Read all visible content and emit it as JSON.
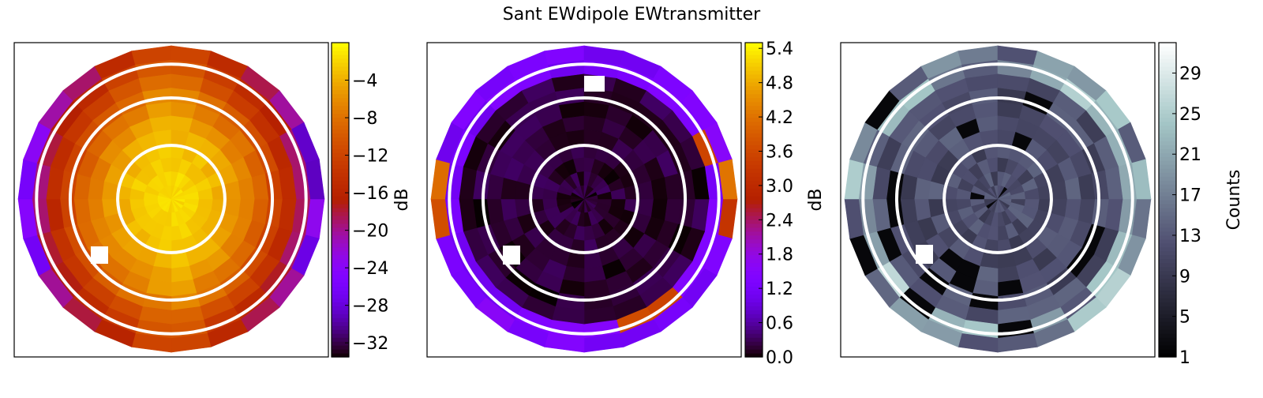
{
  "title": "Sant EWdipole EWtransmitter",
  "colors": {
    "ring": "#ffffff",
    "frame": "#000000",
    "background": "#ffffff"
  },
  "chart_data": [
    {
      "type": "heatmap",
      "projection": "polar sky map (zenith at center)",
      "colormap": "gnuplot",
      "colorbar": {
        "label": "dB",
        "range": [
          -33.5,
          0
        ],
        "ticks": [
          -32,
          -28,
          -24,
          -20,
          -16,
          -12,
          -8,
          -4
        ]
      },
      "description_values": {
        "center_value": -1,
        "edge_value": -20,
        "blank_cells": 1
      },
      "grid": false
    },
    {
      "type": "heatmap",
      "projection": "polar sky map (zenith at center)",
      "colormap": "gnuplot",
      "colorbar": {
        "label": "dB",
        "range": [
          0.0,
          5.5
        ],
        "ticks": [
          "0.0",
          "0.6",
          "1.2",
          "1.8",
          "2.4",
          "3.0",
          "3.6",
          "4.2",
          "4.8",
          "5.4"
        ]
      },
      "description_values": {
        "center_value": 0.1,
        "edge_value": 1.3,
        "blank_cells": 2
      },
      "grid": false
    },
    {
      "type": "heatmap",
      "projection": "polar sky map (zenith at center)",
      "colormap": "bone",
      "colorbar": {
        "label": "Counts",
        "range": [
          1,
          32
        ],
        "ticks": [
          1,
          5,
          9,
          13,
          17,
          21,
          25,
          29
        ]
      },
      "description_values": {
        "center_value": 12,
        "edge_value": 22,
        "blank_cells": 1
      },
      "grid": false
    }
  ]
}
